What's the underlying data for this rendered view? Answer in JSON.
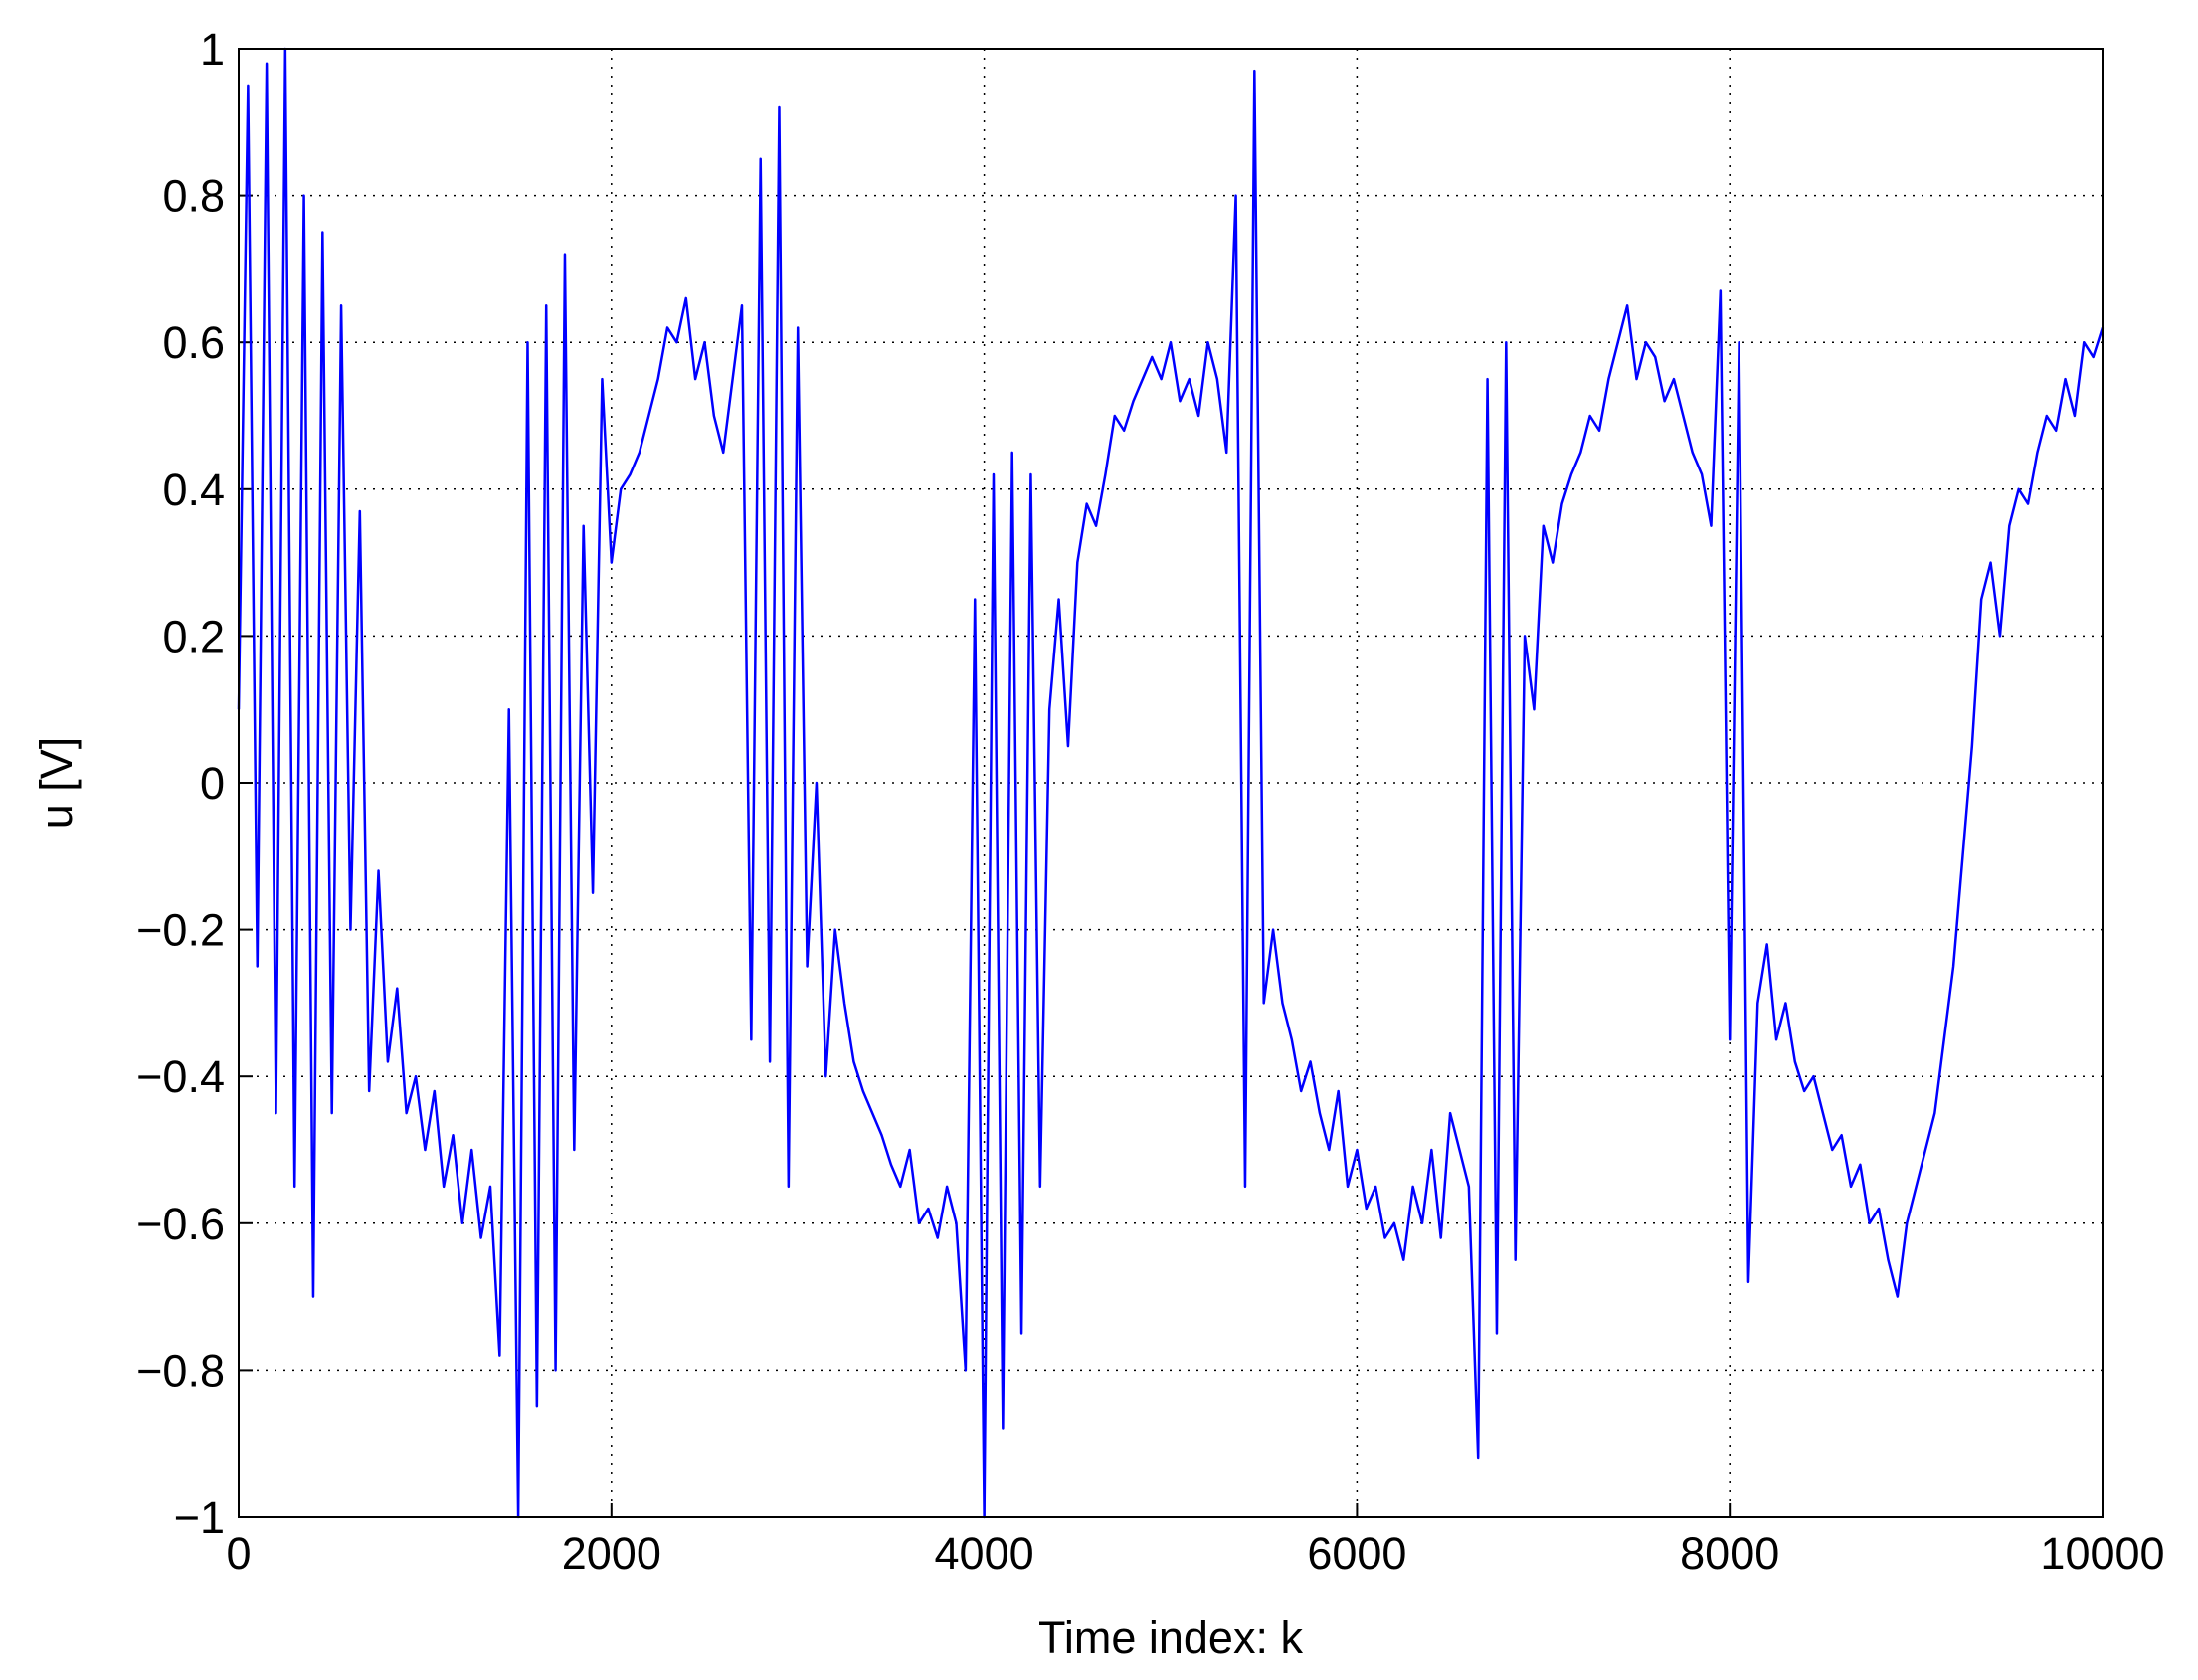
{
  "chart_data": {
    "type": "line",
    "xlabel": "Time index: k",
    "ylabel": "u [V]",
    "x": [
      0,
      50,
      100,
      150,
      200,
      250,
      300,
      350,
      400,
      450,
      500,
      550,
      600,
      650,
      700,
      750,
      800,
      850,
      900,
      950,
      1000,
      1050,
      1100,
      1150,
      1200,
      1250,
      1300,
      1350,
      1400,
      1450,
      1500,
      1550,
      1600,
      1650,
      1700,
      1750,
      1800,
      1850,
      1900,
      1950,
      2000,
      2050,
      2100,
      2150,
      2200,
      2250,
      2300,
      2350,
      2400,
      2450,
      2500,
      2550,
      2600,
      2650,
      2700,
      2750,
      2800,
      2850,
      2900,
      2950,
      3000,
      3050,
      3100,
      3150,
      3200,
      3250,
      3300,
      3350,
      3400,
      3450,
      3500,
      3550,
      3600,
      3650,
      3700,
      3750,
      3800,
      3850,
      3900,
      3950,
      4000,
      4050,
      4100,
      4150,
      4200,
      4250,
      4300,
      4350,
      4400,
      4450,
      4500,
      4550,
      4600,
      4650,
      4700,
      4750,
      4800,
      4850,
      4900,
      4950,
      5000,
      5050,
      5100,
      5150,
      5200,
      5250,
      5300,
      5350,
      5400,
      5450,
      5500,
      5550,
      5600,
      5650,
      5700,
      5750,
      5800,
      5850,
      5900,
      5950,
      6000,
      6050,
      6100,
      6150,
      6200,
      6250,
      6300,
      6350,
      6400,
      6450,
      6500,
      6550,
      6600,
      6650,
      6700,
      6750,
      6800,
      6850,
      6900,
      6950,
      7000,
      7050,
      7100,
      7150,
      7200,
      7250,
      7300,
      7350,
      7400,
      7450,
      7500,
      7550,
      7600,
      7650,
      7700,
      7750,
      7800,
      7850,
      7900,
      7950,
      8000,
      8050,
      8100,
      8150,
      8200,
      8250,
      8300,
      8350,
      8400,
      8450,
      8500,
      8550,
      8600,
      8650,
      8700,
      8750,
      8800,
      8850,
      8900,
      8950,
      9000,
      9050,
      9100,
      9150,
      9200,
      9250,
      9300,
      9350,
      9400,
      9450,
      9500,
      9550,
      9600,
      9650,
      9700,
      9750,
      9800,
      9850,
      9900,
      9950,
      10000
    ],
    "series": [
      {
        "color": "#0000ff",
        "values": [
          0.1,
          0.95,
          -0.25,
          0.98,
          -0.45,
          1.0,
          -0.55,
          0.8,
          -0.7,
          0.75,
          -0.45,
          0.65,
          -0.2,
          0.37,
          -0.42,
          -0.12,
          -0.38,
          -0.28,
          -0.45,
          -0.4,
          -0.5,
          -0.42,
          -0.55,
          -0.48,
          -0.6,
          -0.5,
          -0.62,
          -0.55,
          -0.78,
          0.1,
          -1.0,
          0.6,
          -0.85,
          0.65,
          -0.8,
          0.72,
          -0.5,
          0.35,
          -0.15,
          0.55,
          0.3,
          0.4,
          0.42,
          0.45,
          0.5,
          0.55,
          0.62,
          0.6,
          0.66,
          0.55,
          0.6,
          0.5,
          0.45,
          0.55,
          0.65,
          -0.35,
          0.85,
          -0.38,
          0.92,
          -0.55,
          0.62,
          -0.25,
          0.0,
          -0.4,
          -0.2,
          -0.3,
          -0.38,
          -0.42,
          -0.45,
          -0.48,
          -0.52,
          -0.55,
          -0.5,
          -0.6,
          -0.58,
          -0.62,
          -0.55,
          -0.6,
          -0.8,
          0.25,
          -1.0,
          0.42,
          -0.88,
          0.45,
          -0.75,
          0.42,
          -0.55,
          0.1,
          0.25,
          0.05,
          0.3,
          0.38,
          0.35,
          0.42,
          0.5,
          0.48,
          0.52,
          0.55,
          0.58,
          0.55,
          0.6,
          0.52,
          0.55,
          0.5,
          0.6,
          0.55,
          0.45,
          0.8,
          -0.55,
          0.97,
          -0.3,
          -0.2,
          -0.3,
          -0.35,
          -0.42,
          -0.38,
          -0.45,
          -0.5,
          -0.42,
          -0.55,
          -0.5,
          -0.58,
          -0.55,
          -0.62,
          -0.6,
          -0.65,
          -0.55,
          -0.6,
          -0.5,
          -0.62,
          -0.45,
          -0.5,
          -0.55,
          -0.92,
          0.55,
          -0.75,
          0.6,
          -0.65,
          0.2,
          0.1,
          0.35,
          0.3,
          0.38,
          0.42,
          0.45,
          0.5,
          0.48,
          0.55,
          0.6,
          0.65,
          0.55,
          0.6,
          0.58,
          0.52,
          0.55,
          0.5,
          0.45,
          0.42,
          0.35,
          0.67,
          -0.35,
          0.6,
          -0.68,
          -0.3,
          -0.22,
          -0.35,
          -0.3,
          -0.38,
          -0.42,
          -0.4,
          -0.45,
          -0.5,
          -0.48,
          -0.55,
          -0.52,
          -0.6,
          -0.58,
          -0.65,
          -0.7,
          -0.6,
          -0.55,
          -0.5,
          -0.45,
          -0.35,
          -0.25,
          -0.1,
          0.05,
          0.25,
          0.3,
          0.2,
          0.35,
          0.4,
          0.38,
          0.45,
          0.5,
          0.48,
          0.55,
          0.5,
          0.6,
          0.58,
          0.62
        ]
      }
    ],
    "xlim": [
      0,
      10000
    ],
    "xticks": [
      0,
      2000,
      4000,
      6000,
      8000,
      10000
    ],
    "ylim": [
      -1,
      1
    ],
    "yticks": [
      {
        "value": -1,
        "label": "−1"
      },
      {
        "value": -0.8,
        "label": "−0.8"
      },
      {
        "value": -0.6,
        "label": "−0.6"
      },
      {
        "value": -0.4,
        "label": "−0.4"
      },
      {
        "value": -0.2,
        "label": "−0.2"
      },
      0,
      0.2,
      0.4,
      0.6,
      0.8,
      1
    ],
    "grid": true
  }
}
